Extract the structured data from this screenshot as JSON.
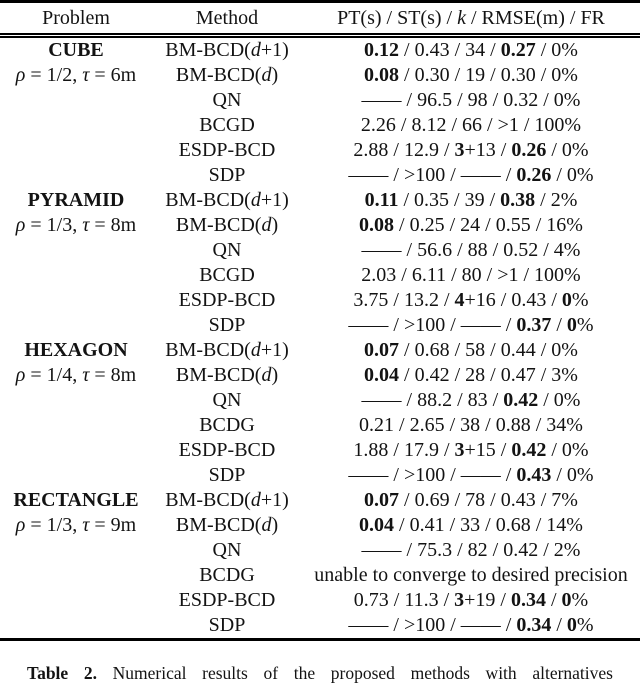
{
  "page": {
    "background": "#ffffff",
    "text_color": "#131313",
    "rule_color": "#000000"
  },
  "table": {
    "header": {
      "problem": "Problem",
      "method": "Method",
      "metrics_segments": [
        [
          "PT(s) / ST(s) / ",
          ""
        ],
        [
          "k",
          "i"
        ],
        [
          " / RMSE(m) / FR",
          ""
        ]
      ]
    },
    "sections": [
      {
        "name": "CUBE",
        "rows": [
          {
            "problem": [
              [
                "CUBE",
                "b"
              ]
            ],
            "method": [
              [
                "BM-BCD(",
                ""
              ],
              [
                "d",
                "i"
              ],
              [
                "+1)",
                ""
              ]
            ],
            "values": [
              [
                "0.12",
                "b"
              ],
              [
                " / 0.43 / 34 / ",
                ""
              ],
              [
                "0.27",
                "b"
              ],
              [
                " / 0%",
                ""
              ]
            ]
          },
          {
            "problem": [
              [
                "ρ",
                "i"
              ],
              [
                " = 1/2, ",
                ""
              ],
              [
                "τ",
                "i"
              ],
              [
                " = 6m",
                ""
              ]
            ],
            "method": [
              [
                "BM-BCD(",
                ""
              ],
              [
                "d",
                "i"
              ],
              [
                ")",
                ""
              ]
            ],
            "values": [
              [
                "0.08",
                "b"
              ],
              [
                " / 0.30 / 19 / 0.30 / 0%",
                ""
              ]
            ]
          },
          {
            "problem": [],
            "method": [
              [
                "QN",
                ""
              ]
            ],
            "values": [
              [
                "—— / 96.5 / 98 / 0.32 / 0%",
                ""
              ]
            ]
          },
          {
            "problem": [],
            "method": [
              [
                "BCGD",
                ""
              ]
            ],
            "values": [
              [
                "2.26 / 8.12 / 66 / >1 / 100%",
                ""
              ]
            ]
          },
          {
            "problem": [],
            "method": [
              [
                "ESDP-BCD",
                ""
              ]
            ],
            "values": [
              [
                "2.88 / 12.9 / ",
                ""
              ],
              [
                "3",
                "b"
              ],
              [
                "+13 / ",
                ""
              ],
              [
                "0.26",
                "b"
              ],
              [
                " / 0%",
                ""
              ]
            ]
          },
          {
            "problem": [],
            "method": [
              [
                "SDP",
                ""
              ]
            ],
            "values": [
              [
                "—— / >100 / —— / ",
                ""
              ],
              [
                "0.26",
                "b"
              ],
              [
                " / 0%",
                ""
              ]
            ]
          }
        ]
      },
      {
        "name": "PYRAMID",
        "rows": [
          {
            "problem": [
              [
                "PYRAMID",
                "b"
              ]
            ],
            "method": [
              [
                "BM-BCD(",
                ""
              ],
              [
                "d",
                "i"
              ],
              [
                "+1)",
                ""
              ]
            ],
            "values": [
              [
                "0.11",
                "b"
              ],
              [
                " / 0.35 / 39 / ",
                ""
              ],
              [
                "0.38",
                "b"
              ],
              [
                " / 2%",
                ""
              ]
            ]
          },
          {
            "problem": [
              [
                "ρ",
                "i"
              ],
              [
                " = 1/3, ",
                ""
              ],
              [
                "τ",
                "i"
              ],
              [
                " = 8m",
                ""
              ]
            ],
            "method": [
              [
                "BM-BCD(",
                ""
              ],
              [
                "d",
                "i"
              ],
              [
                ")",
                ""
              ]
            ],
            "values": [
              [
                "0.08",
                "b"
              ],
              [
                " / 0.25 / 24 / 0.55 / 16%",
                ""
              ]
            ]
          },
          {
            "problem": [],
            "method": [
              [
                "QN",
                ""
              ]
            ],
            "values": [
              [
                "—— / 56.6 / 88 / 0.52 / 4%",
                ""
              ]
            ]
          },
          {
            "problem": [],
            "method": [
              [
                "BCGD",
                ""
              ]
            ],
            "values": [
              [
                "2.03 / 6.11 / 80 / >1 / 100%",
                ""
              ]
            ]
          },
          {
            "problem": [],
            "method": [
              [
                "ESDP-BCD",
                ""
              ]
            ],
            "values": [
              [
                "3.75 / 13.2 / ",
                ""
              ],
              [
                "4",
                "b"
              ],
              [
                "+16 / 0.43 / ",
                ""
              ],
              [
                "0",
                "b"
              ],
              [
                "%",
                ""
              ]
            ]
          },
          {
            "problem": [],
            "method": [
              [
                "SDP",
                ""
              ]
            ],
            "values": [
              [
                "—— / >100 / —— / ",
                ""
              ],
              [
                "0.37",
                "b"
              ],
              [
                " / ",
                ""
              ],
              [
                "0",
                "b"
              ],
              [
                "%",
                ""
              ]
            ]
          }
        ]
      },
      {
        "name": "HEXAGON",
        "rows": [
          {
            "problem": [
              [
                "HEXAGON",
                "b"
              ]
            ],
            "method": [
              [
                "BM-BCD(",
                ""
              ],
              [
                "d",
                "i"
              ],
              [
                "+1)",
                ""
              ]
            ],
            "values": [
              [
                "0.07",
                "b"
              ],
              [
                " / 0.68 / 58 / 0.44 / 0%",
                ""
              ]
            ]
          },
          {
            "problem": [
              [
                "ρ",
                "i"
              ],
              [
                " = 1/4, ",
                ""
              ],
              [
                "τ",
                "i"
              ],
              [
                " = 8m",
                ""
              ]
            ],
            "method": [
              [
                "BM-BCD(",
                ""
              ],
              [
                "d",
                "i"
              ],
              [
                ")",
                ""
              ]
            ],
            "values": [
              [
                "0.04",
                "b"
              ],
              [
                " / 0.42 / 28 / 0.47 / 3%",
                ""
              ]
            ]
          },
          {
            "problem": [],
            "method": [
              [
                "QN",
                ""
              ]
            ],
            "values": [
              [
                "—— / 88.2 / 83 / ",
                ""
              ],
              [
                "0.42",
                "b"
              ],
              [
                " / 0%",
                ""
              ]
            ]
          },
          {
            "problem": [],
            "method": [
              [
                "BCDG",
                ""
              ]
            ],
            "values": [
              [
                "0.21 / 2.65 / 38 / 0.88 / 34%",
                ""
              ]
            ]
          },
          {
            "problem": [],
            "method": [
              [
                "ESDP-BCD",
                ""
              ]
            ],
            "values": [
              [
                "1.88 / 17.9 / ",
                ""
              ],
              [
                "3",
                "b"
              ],
              [
                "+15 / ",
                ""
              ],
              [
                "0.42",
                "b"
              ],
              [
                " / 0%",
                ""
              ]
            ]
          },
          {
            "problem": [],
            "method": [
              [
                "SDP",
                ""
              ]
            ],
            "values": [
              [
                "—— / >100 / —— / ",
                ""
              ],
              [
                "0.43",
                "b"
              ],
              [
                " / 0%",
                ""
              ]
            ]
          }
        ]
      },
      {
        "name": "RECTANGLE",
        "rows": [
          {
            "problem": [
              [
                "RECTANGLE",
                "b"
              ]
            ],
            "method": [
              [
                "BM-BCD(",
                ""
              ],
              [
                "d",
                "i"
              ],
              [
                "+1)",
                ""
              ]
            ],
            "values": [
              [
                "0.07",
                "b"
              ],
              [
                " / 0.69 / 78 / 0.43 / 7%",
                ""
              ]
            ]
          },
          {
            "problem": [
              [
                "ρ",
                "i"
              ],
              [
                " = 1/3, ",
                ""
              ],
              [
                "τ",
                "i"
              ],
              [
                " = 9m",
                ""
              ]
            ],
            "method": [
              [
                "BM-BCD(",
                ""
              ],
              [
                "d",
                "i"
              ],
              [
                ")",
                ""
              ]
            ],
            "values": [
              [
                "0.04",
                "b"
              ],
              [
                " / 0.41 / 33 / 0.68 / 14%",
                ""
              ]
            ]
          },
          {
            "problem": [],
            "method": [
              [
                "QN",
                ""
              ]
            ],
            "values": [
              [
                "—— / 75.3 / 82 / 0.42 / 2%",
                ""
              ]
            ]
          },
          {
            "problem": [],
            "method": [
              [
                "BCDG",
                ""
              ]
            ],
            "values": [
              [
                "unable to converge to desired precision",
                ""
              ]
            ]
          },
          {
            "problem": [],
            "method": [
              [
                "ESDP-BCD",
                ""
              ]
            ],
            "values": [
              [
                "0.73 / 11.3 / ",
                ""
              ],
              [
                "3",
                "b"
              ],
              [
                "+19 / ",
                ""
              ],
              [
                "0.34",
                "b"
              ],
              [
                " / ",
                ""
              ],
              [
                "0",
                "b"
              ],
              [
                "%",
                ""
              ]
            ]
          },
          {
            "problem": [],
            "method": [
              [
                "SDP",
                ""
              ]
            ],
            "values": [
              [
                "—— / >100 / —— / ",
                ""
              ],
              [
                "0.34",
                "b"
              ],
              [
                " / ",
                ""
              ],
              [
                "0",
                "b"
              ],
              [
                "%",
                ""
              ]
            ]
          }
        ]
      }
    ]
  },
  "caption": {
    "segments": [
      [
        "Table 2.",
        "b"
      ],
      [
        " Numerical results of the proposed methods with alternatives",
        ""
      ]
    ]
  }
}
